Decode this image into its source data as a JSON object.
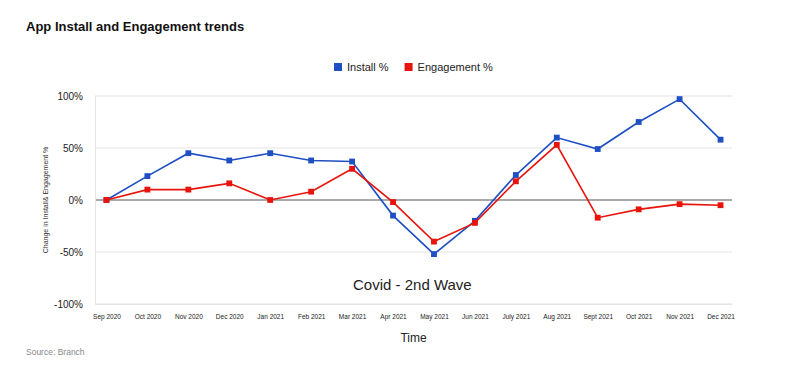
{
  "chart_data": {
    "type": "line",
    "title": "App Install and Engagement trends",
    "x_label": "Time",
    "y_label": "Change in Install& Engagement %",
    "annotation": "Covid - 2nd Wave",
    "source": "Source: Branch",
    "categories": [
      "Sep 2020",
      "Oct 2020",
      "Nov 2020",
      "Dec 2020",
      "Jan 2021",
      "Feb 2021",
      "Mar 2021",
      "Apr 2021",
      "May 2021",
      "Jun 2021",
      "July 2021",
      "Aug 2021",
      "Sept 2021",
      "Oct 2021",
      "Nov 2021",
      "Dec 2021"
    ],
    "series": [
      {
        "name": "Install %",
        "color": "#1f4fc4",
        "marker": "square",
        "values": [
          0,
          23,
          45,
          38,
          45,
          38,
          37,
          -15,
          -52,
          -20,
          24,
          60,
          49,
          75,
          97,
          58
        ]
      },
      {
        "name": "Engagement %",
        "color": "#e8140c",
        "marker": "square",
        "values": [
          0,
          10,
          10,
          16,
          0,
          8,
          30,
          -2,
          -40,
          -22,
          18,
          53,
          -17,
          -9,
          -4,
          -5
        ]
      }
    ],
    "ylim": [
      -100,
      100
    ],
    "yticks": [
      {
        "value": -100,
        "label": "-100%"
      },
      {
        "value": -50,
        "label": "-50%"
      },
      {
        "value": 0,
        "label": "0%"
      },
      {
        "value": 50,
        "label": "50%"
      },
      {
        "value": 100,
        "label": "100%"
      }
    ],
    "grid": true,
    "legend": "top"
  }
}
